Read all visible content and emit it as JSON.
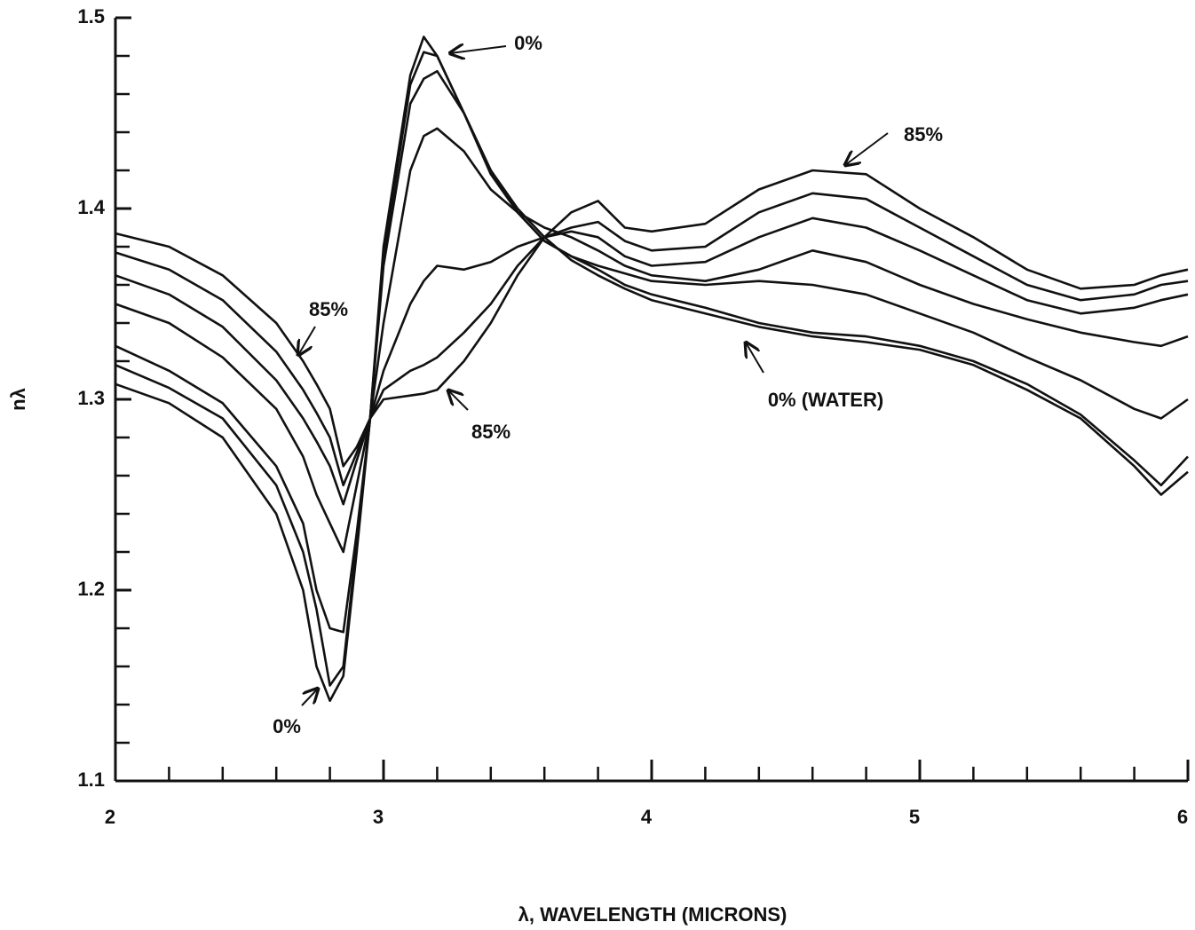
{
  "chart_data": {
    "type": "line",
    "xlabel": "λ, WAVELENGTH (MICRONS)",
    "ylabel": "nλ",
    "x": [
      2.0,
      2.2,
      2.4,
      2.6,
      2.7,
      2.75,
      2.8,
      2.85,
      2.9,
      2.95,
      3.0,
      3.1,
      3.15,
      3.2,
      3.3,
      3.4,
      3.5,
      3.6,
      3.7,
      3.8,
      3.9,
      4.0,
      4.2,
      4.4,
      4.6,
      4.8,
      5.0,
      5.2,
      5.4,
      5.6,
      5.8,
      5.9,
      6.0
    ],
    "series": [
      {
        "color": "#111111",
        "values": [
          1.387,
          1.38,
          1.365,
          1.34,
          1.32,
          1.308,
          1.295,
          1.265,
          1.275,
          1.29,
          1.3,
          1.302,
          1.303,
          1.305,
          1.32,
          1.34,
          1.365,
          1.385,
          1.398,
          1.404,
          1.39,
          1.388,
          1.392,
          1.41,
          1.42,
          1.418,
          1.4,
          1.385,
          1.368,
          1.358,
          1.36,
          1.365,
          1.368
        ]
      },
      {
        "color": "#111111",
        "values": [
          1.377,
          1.368,
          1.352,
          1.325,
          1.305,
          1.293,
          1.28,
          1.255,
          1.272,
          1.29,
          1.305,
          1.315,
          1.318,
          1.322,
          1.335,
          1.35,
          1.37,
          1.385,
          1.39,
          1.393,
          1.383,
          1.378,
          1.38,
          1.398,
          1.408,
          1.405,
          1.39,
          1.375,
          1.36,
          1.352,
          1.355,
          1.36,
          1.362
        ]
      },
      {
        "color": "#111111",
        "values": [
          1.365,
          1.355,
          1.338,
          1.31,
          1.29,
          1.278,
          1.265,
          1.245,
          1.268,
          1.29,
          1.315,
          1.35,
          1.362,
          1.37,
          1.368,
          1.372,
          1.38,
          1.385,
          1.388,
          1.385,
          1.375,
          1.37,
          1.372,
          1.385,
          1.395,
          1.39,
          1.378,
          1.365,
          1.352,
          1.345,
          1.348,
          1.352,
          1.355
        ]
      },
      {
        "color": "#111111",
        "values": [
          1.35,
          1.34,
          1.322,
          1.295,
          1.27,
          1.25,
          1.235,
          1.22,
          1.255,
          1.29,
          1.34,
          1.42,
          1.438,
          1.442,
          1.43,
          1.41,
          1.398,
          1.39,
          1.385,
          1.378,
          1.37,
          1.365,
          1.362,
          1.368,
          1.378,
          1.372,
          1.36,
          1.35,
          1.342,
          1.335,
          1.33,
          1.328,
          1.333
        ]
      },
      {
        "color": "#111111",
        "values": [
          1.328,
          1.315,
          1.298,
          1.265,
          1.235,
          1.2,
          1.18,
          1.178,
          1.23,
          1.29,
          1.37,
          1.455,
          1.468,
          1.472,
          1.45,
          1.42,
          1.398,
          1.383,
          1.375,
          1.37,
          1.366,
          1.362,
          1.36,
          1.362,
          1.36,
          1.355,
          1.345,
          1.335,
          1.322,
          1.31,
          1.295,
          1.29,
          1.3
        ]
      },
      {
        "color": "#111111",
        "values": [
          1.318,
          1.306,
          1.29,
          1.255,
          1.22,
          1.19,
          1.15,
          1.16,
          1.225,
          1.29,
          1.375,
          1.465,
          1.482,
          1.48,
          1.45,
          1.418,
          1.398,
          1.383,
          1.375,
          1.368,
          1.36,
          1.355,
          1.348,
          1.34,
          1.335,
          1.333,
          1.328,
          1.32,
          1.308,
          1.292,
          1.268,
          1.255,
          1.27
        ]
      },
      {
        "color": "#111111",
        "values": [
          1.308,
          1.298,
          1.28,
          1.24,
          1.2,
          1.16,
          1.142,
          1.155,
          1.22,
          1.29,
          1.38,
          1.47,
          1.49,
          1.48,
          1.45,
          1.42,
          1.4,
          1.385,
          1.373,
          1.365,
          1.358,
          1.352,
          1.345,
          1.338,
          1.333,
          1.33,
          1.326,
          1.318,
          1.305,
          1.29,
          1.265,
          1.25,
          1.262
        ]
      }
    ],
    "annotations": [
      "0%",
      "85%",
      "85%",
      "0% (WATER)",
      "85%",
      "0%"
    ],
    "xlim": [
      2,
      6
    ],
    "ylim": [
      1.1,
      1.5
    ],
    "xticks": [
      2,
      3,
      4,
      5,
      6
    ],
    "xticks_minor": [
      2.2,
      2.4,
      2.6,
      2.8,
      3.2,
      3.4,
      3.6,
      3.8,
      4.2,
      4.4,
      4.6,
      4.8,
      5.2,
      5.4,
      5.6,
      5.8
    ],
    "yticks": [
      1.1,
      1.2,
      1.3,
      1.4,
      1.5
    ],
    "yticks_minor": [
      1.12,
      1.14,
      1.16,
      1.18,
      1.22,
      1.24,
      1.26,
      1.28,
      1.32,
      1.34,
      1.36,
      1.38,
      1.42,
      1.44,
      1.46,
      1.48
    ]
  }
}
